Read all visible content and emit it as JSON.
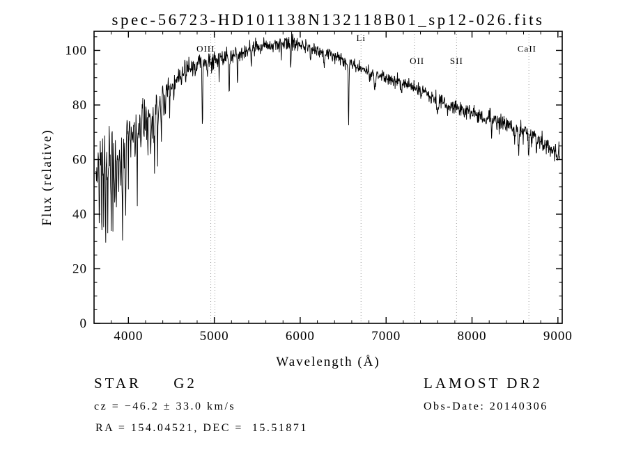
{
  "chart_data": {
    "type": "line",
    "title": "spec-56723-HD101138N132118B01_sp12-026.fits",
    "xlabel": "Wavelength (Å)",
    "ylabel": "Flux (relative)",
    "xlim": [
      3600,
      9050
    ],
    "ylim": [
      0,
      107
    ],
    "xticks": [
      4000,
      5000,
      6000,
      7000,
      8000,
      9000
    ],
    "yticks": [
      0,
      20,
      40,
      60,
      80,
      100
    ],
    "x_minor_step": 200,
    "y_minor_step": 5,
    "grid": false,
    "line_color": "#000000",
    "marker_color": "#9a9a9a",
    "spectral_lines": [
      {
        "label": "OIII",
        "wavelengths": [
          4959,
          5007
        ],
        "label_wavelength": 4900,
        "label_flux": 99.5
      },
      {
        "label": "Li",
        "wavelengths": [
          6708
        ],
        "label_wavelength": 6708,
        "label_flux": 103.4
      },
      {
        "label": "OII",
        "wavelengths": [
          7330
        ],
        "label_wavelength": 7360,
        "label_flux": 95.0
      },
      {
        "label": "SII",
        "wavelengths": [
          7820
        ],
        "label_wavelength": 7820,
        "label_flux": 95.0
      },
      {
        "label": "CaII",
        "wavelengths": [
          8662
        ],
        "label_wavelength": 8640,
        "label_flux": 99.5
      }
    ],
    "spectrum": {
      "start": 3620,
      "end": 9020,
      "step": 4,
      "seed": 20140306,
      "continuum": [
        [
          3620,
          56
        ],
        [
          3700,
          60
        ],
        [
          3800,
          64
        ],
        [
          3900,
          62
        ],
        [
          4000,
          70
        ],
        [
          4150,
          74
        ],
        [
          4300,
          78
        ],
        [
          4500,
          88
        ],
        [
          4700,
          93
        ],
        [
          4900,
          96
        ],
        [
          5100,
          97
        ],
        [
          5300,
          99
        ],
        [
          5500,
          101
        ],
        [
          5700,
          102
        ],
        [
          5900,
          103
        ],
        [
          6050,
          101
        ],
        [
          6200,
          100
        ],
        [
          6400,
          98
        ],
        [
          6600,
          95
        ],
        [
          6800,
          92
        ],
        [
          7000,
          90
        ],
        [
          7200,
          88
        ],
        [
          7400,
          85
        ],
        [
          7600,
          82
        ],
        [
          7800,
          79
        ],
        [
          8000,
          77
        ],
        [
          8200,
          75
        ],
        [
          8400,
          73
        ],
        [
          8600,
          70
        ],
        [
          8800,
          67
        ],
        [
          9020,
          61
        ]
      ],
      "absorption_lines": [
        [
          3660,
          20,
          3
        ],
        [
          3690,
          26,
          3
        ],
        [
          3712,
          22,
          3
        ],
        [
          3734,
          36,
          3
        ],
        [
          3760,
          20,
          3
        ],
        [
          3798,
          30,
          3
        ],
        [
          3820,
          26,
          3
        ],
        [
          3841,
          18,
          3
        ],
        [
          3860,
          20,
          3
        ],
        [
          3889,
          24,
          3
        ],
        [
          3910,
          15,
          3
        ],
        [
          3933,
          28,
          4
        ],
        [
          3968,
          26,
          4
        ],
        [
          4026,
          10,
          3
        ],
        [
          4077,
          14,
          3
        ],
        [
          4102,
          18,
          4
        ],
        [
          4144,
          10,
          3
        ],
        [
          4180,
          8,
          3
        ],
        [
          4226,
          12,
          3
        ],
        [
          4260,
          10,
          3
        ],
        [
          4300,
          13,
          5
        ],
        [
          4340,
          16,
          4
        ],
        [
          4383,
          12,
          3
        ],
        [
          4430,
          8,
          3
        ],
        [
          4481,
          7,
          3
        ],
        [
          4530,
          6,
          3
        ],
        [
          4668,
          7,
          3
        ],
        [
          4861,
          25,
          4
        ],
        [
          4920,
          6,
          3
        ],
        [
          5056,
          8,
          3
        ],
        [
          5172,
          13,
          5
        ],
        [
          5270,
          10,
          4
        ],
        [
          5430,
          6,
          3
        ],
        [
          5780,
          5,
          3
        ],
        [
          5890,
          9,
          4
        ],
        [
          6122,
          5,
          3
        ],
        [
          6280,
          5,
          4
        ],
        [
          6563,
          23,
          4
        ],
        [
          6870,
          7,
          7
        ],
        [
          7180,
          4,
          5
        ],
        [
          7600,
          5,
          7
        ],
        [
          8230,
          4,
          5
        ],
        [
          8498,
          5,
          4
        ],
        [
          8542,
          9,
          5
        ],
        [
          8662,
          8,
          5
        ],
        [
          8750,
          6,
          4
        ]
      ],
      "emission_lines": [
        [
          5577,
          4,
          2
        ],
        [
          5913,
          4,
          2
        ],
        [
          6070,
          3,
          2
        ]
      ],
      "noise_amp": [
        [
          3620,
          5
        ],
        [
          3900,
          4.5
        ],
        [
          4200,
          3.2
        ],
        [
          4600,
          2.2
        ],
        [
          5200,
          1.4
        ],
        [
          6000,
          1.2
        ],
        [
          7000,
          1.2
        ],
        [
          7800,
          1.4
        ],
        [
          8600,
          1.6
        ],
        [
          9020,
          2
        ]
      ],
      "spike_prob": 0.045,
      "spike_max": 16,
      "spike_below": 4600
    }
  },
  "footer": {
    "classification": "STAR     G2",
    "survey": "LAMOST DR2",
    "cz": "cz = −46.2 ± 33.0 km/s",
    "obs_date": "Obs-Date: 20140306",
    "radec": "RA = 154.04521, DEC =  15.51871"
  }
}
